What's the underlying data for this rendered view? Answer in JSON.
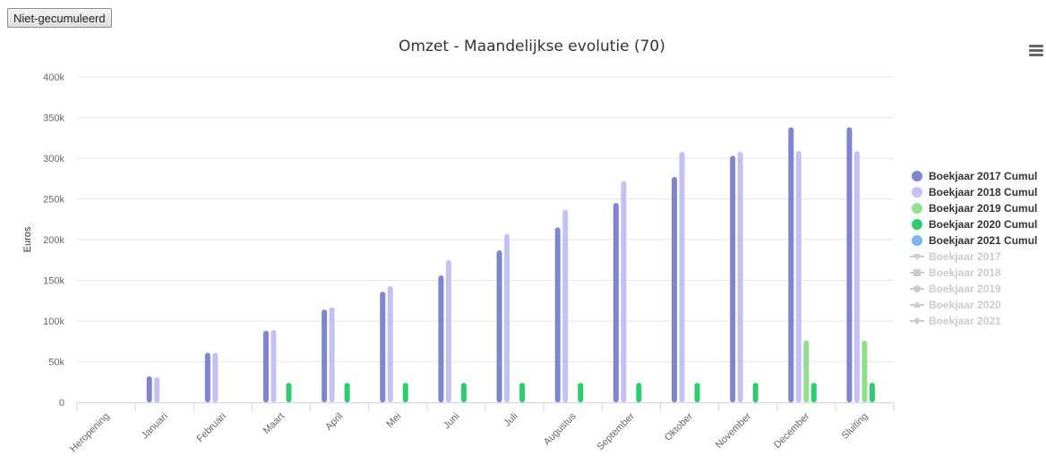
{
  "toolbar": {
    "toggle_label": "Niet-gecumuleerd"
  },
  "menu": {
    "icon": "hamburger-menu-icon"
  },
  "chart_data": {
    "type": "bar",
    "title": "Omzet - Maandelijkse evolutie (70)",
    "ylabel": "Euros",
    "xlabel": "",
    "ylim": [
      0,
      400000
    ],
    "yticks": [
      0,
      50000,
      100000,
      150000,
      200000,
      250000,
      300000,
      350000,
      400000
    ],
    "ytick_labels": [
      "0",
      "50k",
      "100k",
      "150k",
      "200k",
      "250k",
      "300k",
      "350k",
      "400k"
    ],
    "grid": true,
    "legend_position": "right",
    "categories": [
      "Heropening",
      "Januari",
      "Februari",
      "Maart",
      "April",
      "Mei",
      "Juni",
      "Juli",
      "Augustus",
      "September",
      "Oktober",
      "November",
      "December",
      "Sluiting"
    ],
    "series": [
      {
        "name": "Boekjaar 2017 Cumul",
        "color": "#8085d0",
        "visible": true,
        "values": [
          0,
          32000,
          61000,
          88000,
          114000,
          136000,
          156000,
          187000,
          215000,
          245000,
          277000,
          303000,
          338000,
          338000
        ]
      },
      {
        "name": "Boekjaar 2018 Cumul",
        "color": "#c4c2f2",
        "visible": true,
        "values": [
          0,
          31000,
          61000,
          89000,
          117000,
          143000,
          175000,
          207000,
          237000,
          272000,
          308000,
          308000,
          309000,
          309000
        ]
      },
      {
        "name": "Boekjaar 2019 Cumul",
        "color": "#90e08e",
        "visible": true,
        "values": [
          0,
          0,
          0,
          0,
          0,
          0,
          0,
          0,
          0,
          0,
          0,
          0,
          76000,
          76000
        ]
      },
      {
        "name": "Boekjaar 2020 Cumul",
        "color": "#2ecc71",
        "visible": true,
        "values": [
          0,
          0,
          0,
          24000,
          24000,
          24000,
          24000,
          24000,
          24000,
          24000,
          24000,
          24000,
          24000,
          24000
        ]
      },
      {
        "name": "Boekjaar 2021 Cumul",
        "color": "#7cb5ec",
        "visible": true,
        "values": [
          0,
          0,
          0,
          0,
          0,
          0,
          0,
          0,
          0,
          0,
          0,
          0,
          0,
          0
        ]
      }
    ],
    "hidden_series": [
      {
        "name": "Boekjaar 2017",
        "symbol": "triangle-down"
      },
      {
        "name": "Boekjaar 2018",
        "symbol": "square"
      },
      {
        "name": "Boekjaar 2019",
        "symbol": "circle"
      },
      {
        "name": "Boekjaar 2020",
        "symbol": "triangle"
      },
      {
        "name": "Boekjaar 2021",
        "symbol": "diamond"
      }
    ]
  }
}
